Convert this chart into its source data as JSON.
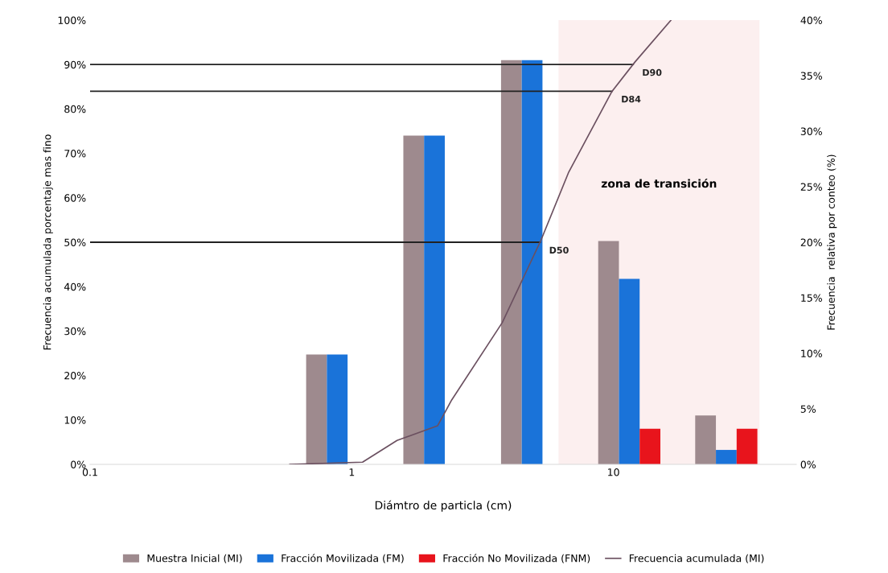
{
  "chart_data": {
    "type": "bar",
    "xlabel": "Diámtro de particla (cm)",
    "ylabel": "Frecuencia acumulada porcentaje mas fino",
    "y2label": "Frecuencia  relativa por conteo (%)",
    "x": [
      0.88,
      2.07,
      4.89,
      11.5,
      27
    ],
    "series": [
      {
        "name": "Muestra Inicial (MI)",
        "color": "#9e8a8e",
        "axis": "y2",
        "values": [
          9.9,
          29.6,
          36.4,
          20.1,
          4.4
        ]
      },
      {
        "name": "Fracción Movilizada (FM)",
        "color": "#1a73d9",
        "axis": "y2",
        "values": [
          9.9,
          29.6,
          36.4,
          16.7,
          1.3
        ]
      },
      {
        "name": "Fracción No Movilizada (FNM)",
        "color": "#e8141c",
        "axis": "y2",
        "values": [
          null,
          null,
          null,
          3.2,
          3.2
        ]
      },
      {
        "name": "Frecuencia acumulada (MI)",
        "type": "line",
        "color": "#6b5060",
        "x": [
          0.58,
          1.1,
          1.49,
          2.13,
          2.41,
          3.76,
          5.29,
          6.75,
          9.86,
          12.1,
          16.6
        ],
        "values": [
          0,
          0.5,
          5.4,
          8.7,
          14.5,
          31.9,
          50.5,
          65.8,
          83.9,
          90.6,
          100
        ]
      }
    ],
    "log": "x",
    "xlim": [
      0.1,
      50
    ],
    "xticks": [
      0.1,
      1,
      10
    ],
    "ylim": [
      0,
      100
    ],
    "yticks": [
      {
        "value": 0,
        "label": "0%"
      },
      {
        "value": 10,
        "label": "10%"
      },
      {
        "value": 20,
        "label": "20%"
      },
      {
        "value": 30,
        "label": "30%"
      },
      {
        "value": 40,
        "label": "40%"
      },
      {
        "value": 50,
        "label": "50%"
      },
      {
        "value": 60,
        "label": "60%"
      },
      {
        "value": 70,
        "label": "70%"
      },
      {
        "value": 80,
        "label": "80%"
      },
      {
        "value": 90,
        "label": "90%"
      },
      {
        "value": 100,
        "label": "100%"
      }
    ],
    "y2lim": [
      0,
      40
    ],
    "y2ticks": [
      {
        "value": 0,
        "label": "0%"
      },
      {
        "value": 5,
        "label": "5%"
      },
      {
        "value": 10,
        "label": "10%"
      },
      {
        "value": 15,
        "label": "15%"
      },
      {
        "value": 20,
        "label": "20%"
      },
      {
        "value": 25,
        "label": "25%"
      },
      {
        "value": 30,
        "label": "30%"
      },
      {
        "value": 35,
        "label": "35%"
      },
      {
        "value": 40,
        "label": "40%"
      }
    ],
    "ref_lines": [
      {
        "axis": "y",
        "value": 90,
        "label": "D90",
        "color": "#222222"
      },
      {
        "axis": "y",
        "value": 84,
        "label": "D84",
        "color": "#222222"
      },
      {
        "axis": "y",
        "value": 50,
        "label": "D50",
        "color": "#222222"
      }
    ],
    "bands": [
      {
        "axis": "x",
        "from": 6.2,
        "to": 36,
        "label": "zona de transición",
        "color": "#fcefef"
      }
    ],
    "grid": false,
    "legend": "bottom"
  }
}
